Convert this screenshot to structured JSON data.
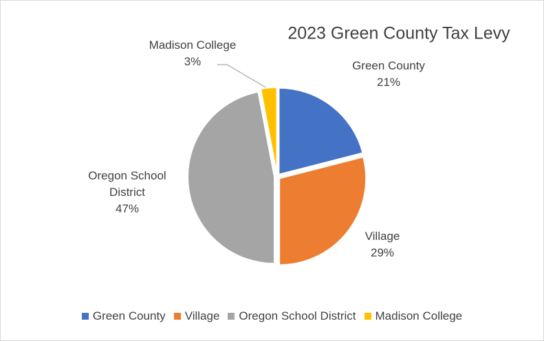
{
  "chart_data": {
    "type": "pie",
    "title": "2023 Green County Tax Levy",
    "categories": [
      "Green County",
      "Village",
      "Oregon School District",
      "Madison College"
    ],
    "values": [
      21,
      29,
      47,
      3
    ],
    "value_labels": [
      "21%",
      "29%",
      "47%",
      "3%"
    ],
    "colors": [
      "#4472c4",
      "#ed7d31",
      "#a5a5a5",
      "#ffc000"
    ],
    "legend": "bottom"
  }
}
